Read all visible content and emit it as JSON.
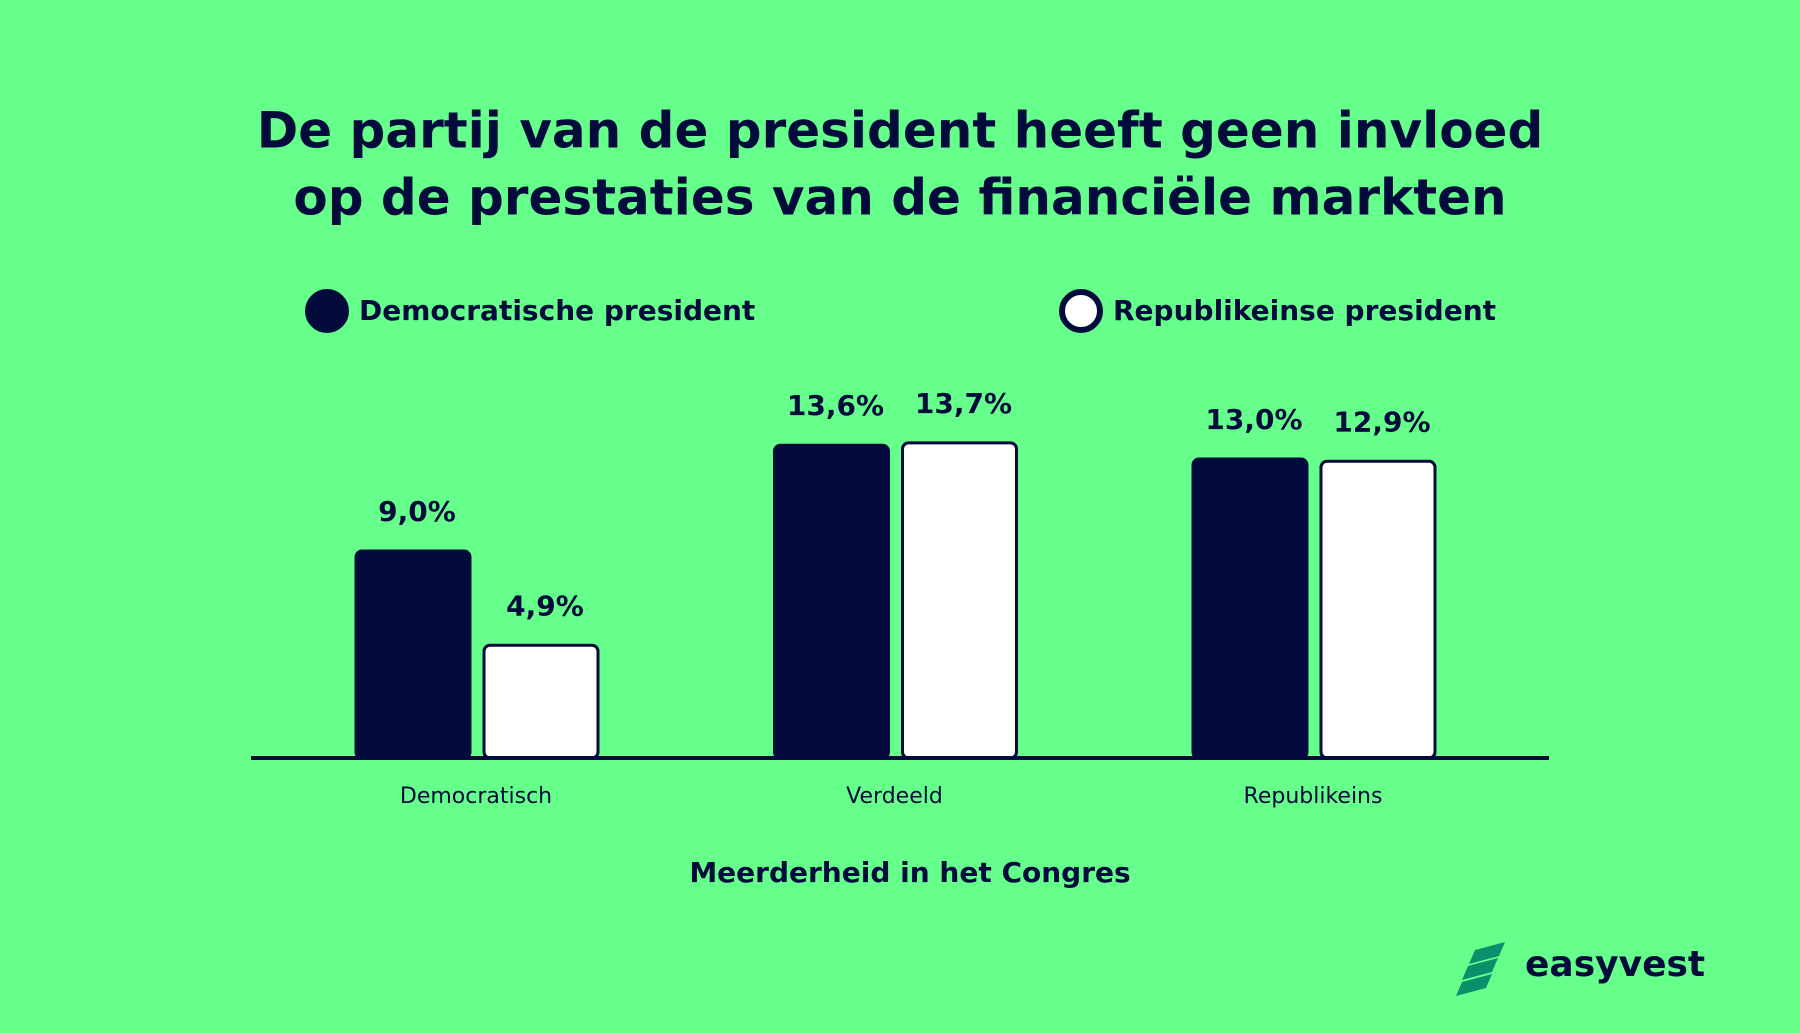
{
  "chart_data": {
    "type": "bar",
    "title": [
      "De partij van de president heeft geen invloed",
      "op de prestaties van de financiële markten"
    ],
    "x_label": "Meerderheid in het Congres",
    "categories": [
      "Democratisch",
      "Verdeeld",
      "Republikeins"
    ],
    "series": [
      {
        "name": "Democratische president",
        "color": "#020b3b",
        "values": [
          9.0,
          13.6,
          13.0
        ],
        "value_labels": [
          "9,0%",
          "13,6%",
          "13,0%"
        ]
      },
      {
        "name": "Republikeinse president",
        "color": "#ffffff",
        "values": [
          4.9,
          13.7,
          12.9
        ],
        "value_labels": [
          "4,9%",
          "13,7%",
          "12,9%"
        ]
      }
    ],
    "brand": "easyvest"
  }
}
